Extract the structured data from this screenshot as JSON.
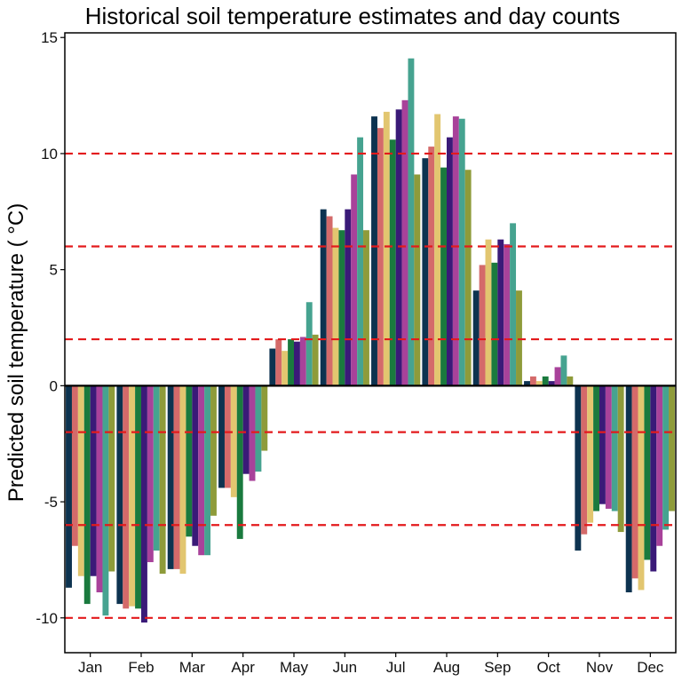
{
  "chart_data": {
    "type": "bar",
    "title": "Historical soil temperature estimates and day counts",
    "xlabel": "",
    "ylabel": "Predicted soil temperature ( °C)",
    "ylim": [
      -11.5,
      15.2
    ],
    "yticks": [
      -10,
      -5,
      0,
      5,
      10,
      15
    ],
    "categories": [
      "Jan",
      "Feb",
      "Mar",
      "Apr",
      "May",
      "Jun",
      "Jul",
      "Aug",
      "Sep",
      "Oct",
      "Nov",
      "Dec"
    ],
    "colors": [
      "#0d3350",
      "#d46a6a",
      "#e2c670",
      "#1a7a3e",
      "#3a1a78",
      "#a8429a",
      "#46a390",
      "#8e9b3a"
    ],
    "reference_lines": {
      "values": [
        -10,
        -6,
        -2,
        2,
        6,
        10
      ],
      "color": "#e31a1c",
      "style": "dashed"
    },
    "zero_line": true,
    "grid": false,
    "legend": "none",
    "series": [
      {
        "values": [
          -8.7,
          -9.4,
          -7.9,
          -4.4,
          1.6,
          7.6,
          11.6,
          9.8,
          4.1,
          0.2,
          -7.1,
          -8.9
        ]
      },
      {
        "values": [
          -6.9,
          -9.6,
          -7.9,
          -4.4,
          2.0,
          7.3,
          11.1,
          10.3,
          5.2,
          0.4,
          -6.4,
          -8.3
        ]
      },
      {
        "values": [
          -8.2,
          -9.5,
          -8.1,
          -4.8,
          1.5,
          6.8,
          11.8,
          11.7,
          6.3,
          0.2,
          -5.9,
          -8.8
        ]
      },
      {
        "values": [
          -9.4,
          -9.6,
          -6.5,
          -6.6,
          2.0,
          6.7,
          10.6,
          9.4,
          5.3,
          0.4,
          -5.4,
          -7.5
        ]
      },
      {
        "values": [
          -8.2,
          -10.2,
          -6.9,
          -3.8,
          1.9,
          7.6,
          11.9,
          10.7,
          6.3,
          0.2,
          -5.1,
          -8.0
        ]
      },
      {
        "values": [
          -8.9,
          -7.6,
          -7.3,
          -4.1,
          2.1,
          9.1,
          12.3,
          11.6,
          6.1,
          0.8,
          -5.3,
          -6.9
        ]
      },
      {
        "values": [
          -9.9,
          -7.1,
          -7.3,
          -3.7,
          3.6,
          10.7,
          14.1,
          11.5,
          7.0,
          1.3,
          -5.4,
          -6.2
        ]
      },
      {
        "values": [
          -8.0,
          -8.1,
          -5.6,
          -2.8,
          2.2,
          6.7,
          9.1,
          9.3,
          4.1,
          0.4,
          -6.3,
          -5.4
        ]
      }
    ]
  }
}
